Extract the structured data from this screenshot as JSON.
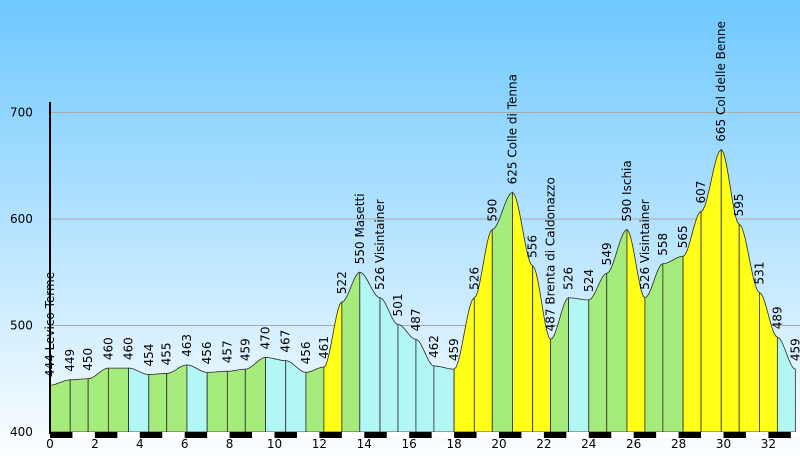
{
  "chart_data": {
    "type": "area",
    "title": "",
    "xlabel": "",
    "ylabel": "",
    "xlim": [
      0,
      33
    ],
    "ylim": [
      400,
      700
    ],
    "grid": true,
    "y_ticks": [
      400,
      500,
      600,
      700
    ],
    "x_ticks": [
      "0",
      "2",
      "4",
      "6",
      "8",
      "10",
      "12",
      "14",
      "16",
      "18",
      "20",
      "22",
      "24",
      "26",
      "28",
      "30",
      "32"
    ],
    "colors": {
      "sky_top": "#6ec8ff",
      "sky_bottom": "#ffffff",
      "uphill_gentle": "#a6ec7c",
      "downhill_gentle": "#b2f6f6",
      "steep": "#ffff17",
      "grid": "#a9a9a9",
      "axis": "#000000"
    },
    "points": [
      {
        "x": 0.0,
        "y": 444,
        "label": "444 Levico Terme"
      },
      {
        "x": 0.9,
        "y": 449,
        "label": "449"
      },
      {
        "x": 1.7,
        "y": 450,
        "label": "450"
      },
      {
        "x": 2.6,
        "y": 460,
        "label": "460"
      },
      {
        "x": 3.5,
        "y": 460,
        "label": "460"
      },
      {
        "x": 4.4,
        "y": 454,
        "label": "454"
      },
      {
        "x": 5.2,
        "y": 455,
        "label": "455"
      },
      {
        "x": 6.1,
        "y": 463,
        "label": "463"
      },
      {
        "x": 7.0,
        "y": 456,
        "label": "456"
      },
      {
        "x": 7.9,
        "y": 457,
        "label": "457"
      },
      {
        "x": 8.7,
        "y": 459,
        "label": "459"
      },
      {
        "x": 9.6,
        "y": 470,
        "label": "470"
      },
      {
        "x": 10.5,
        "y": 467,
        "label": "467"
      },
      {
        "x": 11.4,
        "y": 456,
        "label": "456"
      },
      {
        "x": 12.2,
        "y": 461,
        "label": "461"
      },
      {
        "x": 13.0,
        "y": 522,
        "label": "522"
      },
      {
        "x": 13.8,
        "y": 550,
        "label": "550 Masetti"
      },
      {
        "x": 14.7,
        "y": 526,
        "label": "526 Visintainer"
      },
      {
        "x": 15.5,
        "y": 501,
        "label": "501"
      },
      {
        "x": 16.3,
        "y": 487,
        "label": "487"
      },
      {
        "x": 17.1,
        "y": 462,
        "label": "462"
      },
      {
        "x": 18.0,
        "y": 459,
        "label": "459"
      },
      {
        "x": 18.9,
        "y": 526,
        "label": "526"
      },
      {
        "x": 19.7,
        "y": 590,
        "label": "590"
      },
      {
        "x": 20.6,
        "y": 625,
        "label": "625 Colle di Tenna"
      },
      {
        "x": 21.5,
        "y": 556,
        "label": "556"
      },
      {
        "x": 22.3,
        "y": 487,
        "label": "487 Brenta di Caldonazzo"
      },
      {
        "x": 23.1,
        "y": 526,
        "label": "526"
      },
      {
        "x": 24.0,
        "y": 524,
        "label": "524"
      },
      {
        "x": 24.8,
        "y": 549,
        "label": "549"
      },
      {
        "x": 25.7,
        "y": 590,
        "label": "590 Ischia"
      },
      {
        "x": 26.5,
        "y": 526,
        "label": "526 Visintainer"
      },
      {
        "x": 27.3,
        "y": 558,
        "label": "558"
      },
      {
        "x": 28.2,
        "y": 565,
        "label": "565"
      },
      {
        "x": 29.0,
        "y": 607,
        "label": "607"
      },
      {
        "x": 29.9,
        "y": 665,
        "label": "665 Col delle Benne"
      },
      {
        "x": 30.7,
        "y": 595,
        "label": "595"
      },
      {
        "x": 31.6,
        "y": 531,
        "label": "531"
      },
      {
        "x": 32.4,
        "y": 489,
        "label": "489"
      },
      {
        "x": 33.2,
        "y": 459,
        "label": "459"
      }
    ]
  }
}
